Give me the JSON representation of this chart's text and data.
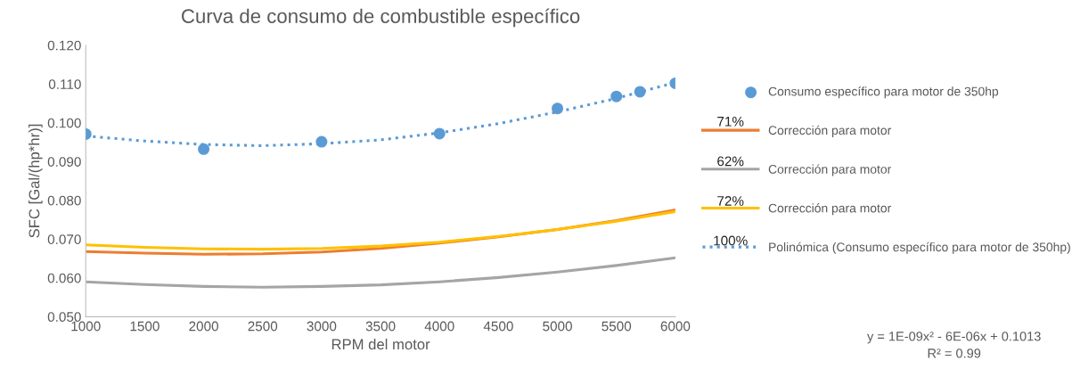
{
  "chart_data": {
    "type": "line",
    "title": "Curva de consumo de combustible específico",
    "xlabel": "RPM del motor",
    "ylabel": "SFC [Gal/(hp*hr)]",
    "xlim": [
      1000,
      6000
    ],
    "xticks": [
      1000,
      1500,
      2000,
      2500,
      3000,
      3500,
      4000,
      4500,
      5000,
      5500,
      6000
    ],
    "ylim": [
      0.05,
      0.12
    ],
    "yticks": [
      {
        "value": 0.05,
        "label": "0.050"
      },
      {
        "value": 0.06,
        "label": "0.060"
      },
      {
        "value": 0.07,
        "label": "0.070"
      },
      {
        "value": 0.08,
        "label": "0.080"
      },
      {
        "value": 0.09,
        "label": "0.090"
      },
      {
        "value": 0.1,
        "label": "0.100"
      },
      {
        "value": 0.11,
        "label": "0.110"
      },
      {
        "value": 0.12,
        "label": "0.120"
      }
    ],
    "grid": false,
    "legend": "right",
    "annotations": [
      "71%",
      "62%",
      "72%",
      "100%",
      "y = 1E-09x² - 6E-06x + 0.1013",
      "R² = 0.99"
    ],
    "series": [
      {
        "name": "Consumo específico para motor de 350hp",
        "type": "scatter",
        "marker": "circle",
        "color": "#5b9bd5",
        "x": [
          1000,
          2000,
          3000,
          4000,
          5000,
          5500,
          5700,
          6000
        ],
        "values": [
          0.0971,
          0.0932,
          0.0951,
          0.0972,
          0.1037,
          0.1068,
          0.108,
          0.1102
        ]
      },
      {
        "name": "Corrección para motor",
        "line_style": "solid",
        "color": "#ed7d31",
        "x": [
          1000,
          1500,
          2000,
          2500,
          3000,
          3500,
          4000,
          4500,
          5000,
          5500,
          6000
        ],
        "values": [
          0.0668,
          0.0664,
          0.0661,
          0.0662,
          0.0667,
          0.0676,
          0.069,
          0.0706,
          0.0725,
          0.0748,
          0.0775
        ]
      },
      {
        "name": "Corrección para motor",
        "line_style": "solid",
        "color": "#a5a5a5",
        "x": [
          1000,
          1500,
          2000,
          2500,
          3000,
          3500,
          4000,
          4500,
          5000,
          5500,
          6000
        ],
        "values": [
          0.059,
          0.0583,
          0.0578,
          0.0576,
          0.0578,
          0.0582,
          0.059,
          0.0601,
          0.0615,
          0.0632,
          0.0652
        ]
      },
      {
        "name": "Corrección para motor",
        "line_style": "solid",
        "color": "#ffc000",
        "x": [
          1000,
          1500,
          2000,
          2500,
          3000,
          3500,
          4000,
          4500,
          5000,
          5500,
          6000
        ],
        "values": [
          0.0685,
          0.0679,
          0.0675,
          0.0674,
          0.0676,
          0.0682,
          0.0692,
          0.0707,
          0.0725,
          0.0746,
          0.0771
        ]
      },
      {
        "name": "Polinómica (Consumo específico para motor de 350hp)",
        "line_style": "dotted",
        "color": "#5b9bd5",
        "x": [
          1000,
          1500,
          2000,
          2500,
          3000,
          3500,
          4000,
          4500,
          5000,
          5500,
          6000
        ],
        "values": [
          0.0966,
          0.0953,
          0.0944,
          0.0941,
          0.0946,
          0.0956,
          0.0974,
          0.0998,
          0.1028,
          0.1063,
          0.1104
        ]
      }
    ]
  }
}
